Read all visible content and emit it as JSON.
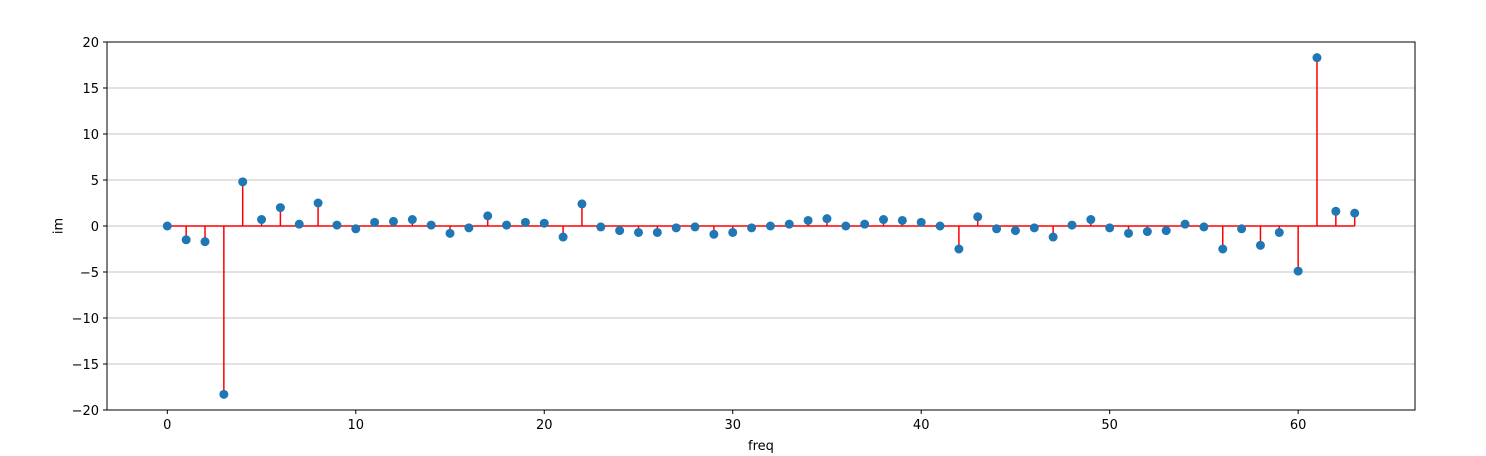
{
  "chart_data": {
    "type": "stem",
    "title": "",
    "xlabel": "freq",
    "ylabel": "im",
    "xlim": [
      -3.2,
      66.2
    ],
    "ylim": [
      -20,
      20
    ],
    "xticks": [
      0,
      10,
      20,
      30,
      40,
      50,
      60
    ],
    "yticks": [
      -20,
      -15,
      -10,
      -5,
      0,
      5,
      10,
      15,
      20
    ],
    "ytick_labels": [
      "−20",
      "−15",
      "−10",
      "−5",
      "0",
      "5",
      "10",
      "15",
      "20"
    ],
    "grid": "horizontal",
    "legend": "none",
    "colors": {
      "stem": "#ff0000",
      "marker": "#1f77b4",
      "baseline": "#ff0000",
      "grid": "#b0b0b0",
      "axes": "#000000"
    },
    "x": [
      0,
      1,
      2,
      3,
      4,
      5,
      6,
      7,
      8,
      9,
      10,
      11,
      12,
      13,
      14,
      15,
      16,
      17,
      18,
      19,
      20,
      21,
      22,
      23,
      24,
      25,
      26,
      27,
      28,
      29,
      30,
      31,
      32,
      33,
      34,
      35,
      36,
      37,
      38,
      39,
      40,
      41,
      42,
      43,
      44,
      45,
      46,
      47,
      48,
      49,
      50,
      51,
      52,
      53,
      54,
      55,
      56,
      57,
      58,
      59,
      60,
      61,
      62,
      63
    ],
    "values": [
      0.0,
      -1.5,
      -1.7,
      -18.3,
      4.8,
      0.7,
      2.0,
      0.2,
      2.5,
      0.1,
      -0.3,
      0.4,
      0.5,
      0.7,
      0.1,
      -0.8,
      -0.2,
      1.1,
      0.1,
      0.4,
      0.3,
      -1.2,
      2.4,
      -0.1,
      -0.5,
      -0.7,
      -0.7,
      -0.2,
      -0.1,
      -0.9,
      -0.7,
      -0.2,
      0.0,
      0.2,
      0.6,
      0.8,
      0.0,
      0.2,
      0.7,
      0.6,
      0.4,
      0.0,
      -2.5,
      1.0,
      -0.3,
      -0.5,
      -0.2,
      -1.2,
      0.1,
      0.7,
      -0.2,
      -0.8,
      -0.6,
      -0.5,
      0.2,
      -0.1,
      -2.5,
      -0.3,
      -2.1,
      -0.7,
      -4.9,
      18.3,
      1.6,
      1.4
    ]
  }
}
